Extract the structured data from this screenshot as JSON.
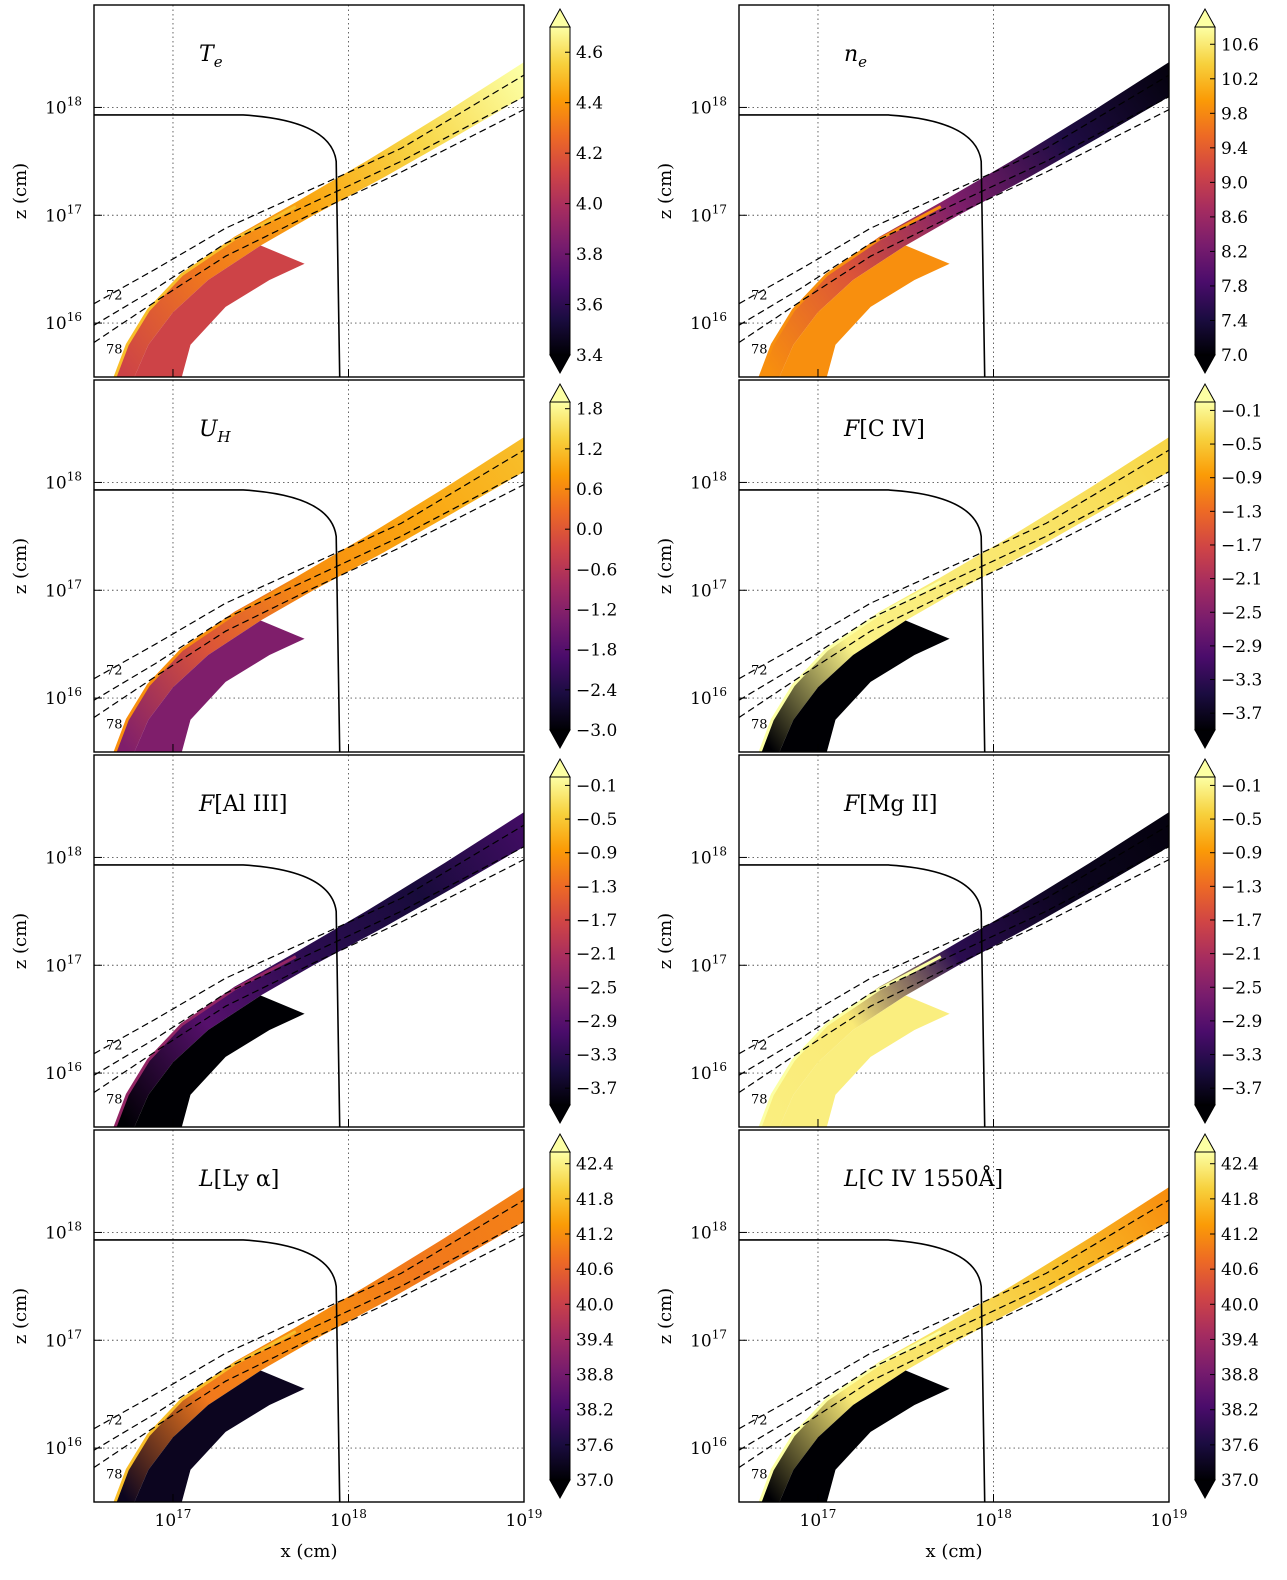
{
  "labels": {
    "z_axis": "z (cm)",
    "x_axis": "x (cm)",
    "x_ticks": [
      "10^17",
      "10^18",
      "10^19"
    ],
    "z_ticks": [
      "10^16",
      "10^17",
      "10^18"
    ],
    "streamline_labels": [
      "72",
      "78"
    ]
  },
  "colormap": [
    "#000004",
    "#1b0c41",
    "#4a0c6b",
    "#781c6d",
    "#a52c60",
    "#cf4446",
    "#ed6925",
    "#fb9b06",
    "#f7d13d",
    "#fcffa4"
  ],
  "chart_data": [
    {
      "type": "heatmap",
      "title_main": "T",
      "title_sub": "e",
      "title_rest": "",
      "xlabel": "",
      "ylabel": "z (cm)",
      "xscale": "log",
      "yscale": "log",
      "grid": true,
      "colorbar": [
        "3.4",
        "3.6",
        "3.8",
        "4.0",
        "4.2",
        "4.4",
        "4.6"
      ],
      "colorbar_range": [
        3.4,
        4.7
      ],
      "wind_color_stops": [
        0.55,
        0.7,
        0.8,
        0.9,
        1.0
      ]
    },
    {
      "type": "heatmap",
      "title_main": "n",
      "title_sub": "e",
      "title_rest": "",
      "xlabel": "",
      "ylabel": "z (cm)",
      "xscale": "log",
      "yscale": "log",
      "grid": true,
      "colorbar": [
        "7.0",
        "7.4",
        "7.8",
        "8.2",
        "8.6",
        "9.0",
        "9.4",
        "9.8",
        "10.2",
        "10.6"
      ],
      "colorbar_range": [
        7.0,
        10.8
      ],
      "wind_color_stops": [
        0.75,
        0.6,
        0.35,
        0.12,
        0.02
      ]
    },
    {
      "type": "heatmap",
      "title_main": "U",
      "title_sub": "H",
      "title_rest": "",
      "xlabel": "",
      "ylabel": "z (cm)",
      "xscale": "log",
      "yscale": "log",
      "grid": true,
      "colorbar": [
        "−3.0",
        "−2.4",
        "−1.8",
        "−1.2",
        "−0.6",
        "0.0",
        "0.6",
        "1.2",
        "1.8"
      ],
      "colorbar_range": [
        -3.0,
        1.9
      ],
      "wind_color_stops": [
        0.35,
        0.6,
        0.75,
        0.8,
        0.85
      ]
    },
    {
      "type": "heatmap",
      "title_main": "F",
      "title_sub": "",
      "title_rest": "[C IV]",
      "xlabel": "",
      "ylabel": "z (cm)",
      "xscale": "log",
      "yscale": "log",
      "grid": true,
      "colorbar": [
        "−3.7",
        "−3.3",
        "−2.9",
        "−2.5",
        "−2.1",
        "−1.7",
        "−1.3",
        "−0.9",
        "−0.5",
        "−0.1"
      ],
      "colorbar_range": [
        -3.9,
        0.0
      ],
      "wind_color_stops": [
        0.0,
        0.97,
        0.95,
        0.93,
        0.9
      ]
    },
    {
      "type": "heatmap",
      "title_main": "F",
      "title_sub": "",
      "title_rest": "[Al III]",
      "xlabel": "",
      "ylabel": "z (cm)",
      "xscale": "log",
      "yscale": "log",
      "grid": true,
      "colorbar": [
        "−3.7",
        "−3.3",
        "−2.9",
        "−2.5",
        "−2.1",
        "−1.7",
        "−1.3",
        "−0.9",
        "−0.5",
        "−0.1"
      ],
      "colorbar_range": [
        -3.9,
        0.0
      ],
      "wind_color_stops": [
        0.0,
        0.25,
        0.15,
        0.1,
        0.2
      ]
    },
    {
      "type": "heatmap",
      "title_main": "F",
      "title_sub": "",
      "title_rest": "[Mg II]",
      "xlabel": "",
      "ylabel": "z (cm)",
      "xscale": "log",
      "yscale": "log",
      "grid": true,
      "colorbar": [
        "−3.7",
        "−3.3",
        "−2.9",
        "−2.5",
        "−2.1",
        "−1.7",
        "−1.3",
        "−0.9",
        "−0.5",
        "−0.1"
      ],
      "colorbar_range": [
        -3.9,
        0.0
      ],
      "wind_color_stops": [
        0.96,
        0.95,
        0.15,
        0.05,
        0.02
      ]
    },
    {
      "type": "heatmap",
      "title_main": "L",
      "title_sub": "",
      "title_rest": "[Ly α]",
      "xlabel": "x (cm)",
      "ylabel": "z (cm)",
      "xscale": "log",
      "yscale": "log",
      "grid": true,
      "colorbar": [
        "37.0",
        "37.6",
        "38.2",
        "38.8",
        "39.4",
        "40.0",
        "40.6",
        "41.2",
        "41.8",
        "42.4"
      ],
      "colorbar_range": [
        37.0,
        42.6
      ],
      "wind_color_stops": [
        0.05,
        0.7,
        0.75,
        0.7,
        0.72
      ]
    },
    {
      "type": "heatmap",
      "title_main": "L",
      "title_sub": "",
      "title_rest": "[C IV 1550Å]",
      "xlabel": "x (cm)",
      "ylabel": "z (cm)",
      "xscale": "log",
      "yscale": "log",
      "grid": true,
      "colorbar": [
        "37.0",
        "37.6",
        "38.2",
        "38.8",
        "39.4",
        "40.0",
        "40.6",
        "41.2",
        "41.8",
        "42.4"
      ],
      "colorbar_range": [
        37.0,
        42.6
      ],
      "wind_color_stops": [
        0.0,
        0.95,
        0.93,
        0.85,
        0.75
      ]
    }
  ]
}
